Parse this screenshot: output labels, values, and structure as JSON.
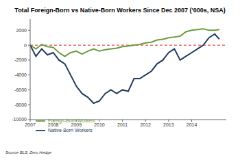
{
  "chart_data": {
    "type": "line",
    "title": "Total Foreign-Born vs Native-Born Workers Since Dec 2007 ('000s, NSA)",
    "source": "Source BLS, Zero Hedge",
    "x": [
      2007,
      2007.25,
      2007.5,
      2007.75,
      2008,
      2008.25,
      2008.5,
      2008.75,
      2009,
      2009.25,
      2009.5,
      2009.75,
      2010,
      2010.25,
      2010.5,
      2010.75,
      2011,
      2011.25,
      2011.5,
      2011.75,
      2012,
      2012.25,
      2012.5,
      2012.75,
      2013,
      2013.25,
      2013.5,
      2013.75,
      2014,
      2014.25,
      2014.5,
      2014.75,
      2015,
      2015.2
    ],
    "series": [
      {
        "name": "Foreign-Born Workers",
        "color": "#6b9a3c",
        "values": [
          0,
          -500,
          100,
          -200,
          -300,
          -1000,
          -1500,
          -1000,
          -800,
          -1200,
          -800,
          -500,
          -800,
          -600,
          -500,
          -400,
          -200,
          -100,
          0,
          100,
          300,
          400,
          700,
          800,
          1000,
          1100,
          1200,
          1800,
          2000,
          2100,
          2200,
          2000,
          2000,
          2100
        ]
      },
      {
        "name": "Native-Born Workers",
        "color": "#1f3b5c",
        "values": [
          0,
          -1500,
          -500,
          -1300,
          -1000,
          -2000,
          -2500,
          -4000,
          -5500,
          -6500,
          -7000,
          -7800,
          -7500,
          -6500,
          -6000,
          -6500,
          -6000,
          -6200,
          -4500,
          -4500,
          -4000,
          -3500,
          -2500,
          -2000,
          -1000,
          -500,
          -2000,
          -1500,
          -1000,
          -500,
          0,
          1000,
          1500,
          800
        ]
      }
    ],
    "xlim": [
      2007,
      2015.5
    ],
    "xticks": [
      2007,
      2008,
      2009,
      2010,
      2011,
      2012,
      2013,
      2014
    ],
    "ylim": [
      -10000,
      3500
    ],
    "yticks": [
      -10000,
      -8000,
      -6000,
      -4000,
      -2000,
      0,
      2000
    ],
    "reference_line": {
      "y": 0,
      "color": "#e02020",
      "line_style": "dashed"
    },
    "grid": false,
    "legend": "lower left"
  }
}
